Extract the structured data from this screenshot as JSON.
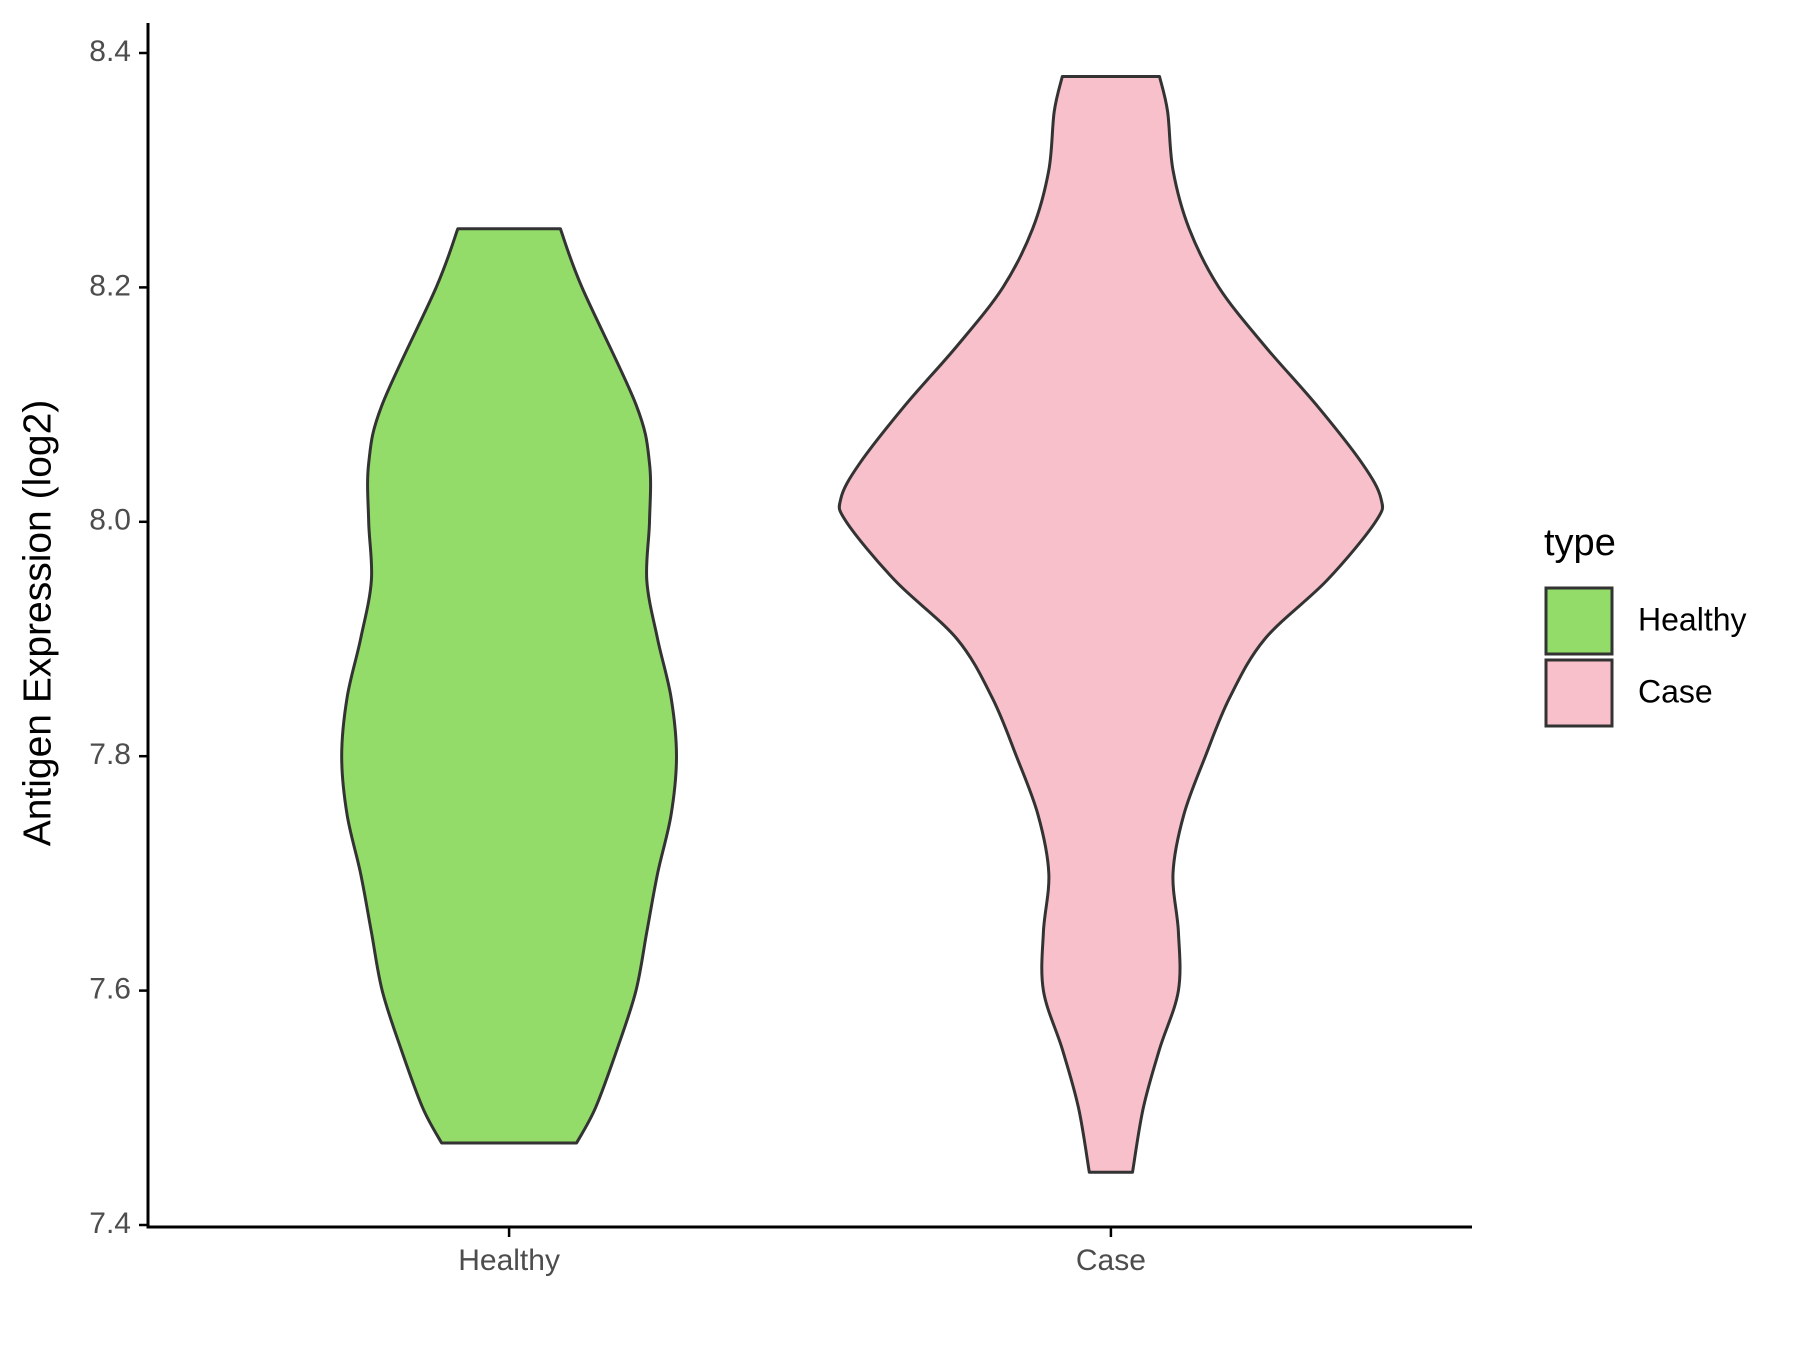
{
  "chart_data": {
    "type": "violin",
    "y_label": "Antigen Expression (log2)",
    "categories": [
      "Healthy",
      "Case"
    ],
    "legend_title": "type",
    "series": [
      {
        "name": "Healthy",
        "color": "#93dc6a",
        "values": [
          8.25,
          8.2,
          8.1,
          8.05,
          8.0,
          7.95,
          7.9,
          7.85,
          7.8,
          7.75,
          7.7,
          7.65,
          7.6,
          7.55,
          7.5,
          7.47
        ],
        "widths": [
          0.19,
          0.27,
          0.47,
          0.52,
          0.52,
          0.51,
          0.55,
          0.6,
          0.62,
          0.6,
          0.55,
          0.51,
          0.47,
          0.4,
          0.32,
          0.25
        ]
      },
      {
        "name": "Case",
        "color": "#f7c0cb",
        "values": [
          8.38,
          8.35,
          8.3,
          8.25,
          8.2,
          8.15,
          8.1,
          8.05,
          8.02,
          8.0,
          7.95,
          7.9,
          7.85,
          7.8,
          7.75,
          7.7,
          7.65,
          7.6,
          7.55,
          7.5,
          7.445
        ],
        "widths": [
          0.18,
          0.21,
          0.23,
          0.29,
          0.4,
          0.57,
          0.76,
          0.93,
          1.0,
          0.98,
          0.8,
          0.57,
          0.44,
          0.35,
          0.27,
          0.23,
          0.25,
          0.25,
          0.18,
          0.12,
          0.08
        ]
      }
    ],
    "ylim": [
      7.4,
      8.4
    ],
    "yticks": [
      7.4,
      7.6,
      7.8,
      {
        "value": 8,
        "label": "8.0"
      },
      8.2,
      8.4
    ]
  }
}
